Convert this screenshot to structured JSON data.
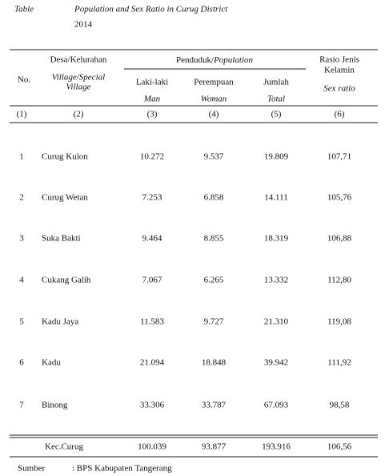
{
  "title": {
    "label": "Table",
    "text": "Population and Sex Ratio in Curug  District",
    "year": "2014"
  },
  "table": {
    "headers": {
      "no": "No.",
      "village": "Desa/Kelurahan",
      "village_en_1": "Village/Special",
      "village_en_2": "Village",
      "population": "Penduduk/",
      "population_en": "Population",
      "male": "Laki-laki",
      "male_en": "Man",
      "female": "Perempuan",
      "female_en": "Woman",
      "total": "Jumlah",
      "total_en": "Total",
      "ratio_1": "Rasio Jenis",
      "ratio_2": "Kelamin",
      "ratio_en": "Sex ratio"
    },
    "column_numbers": [
      "(1)",
      "(2)",
      "(3)",
      "(4)",
      "(5)",
      "(6)"
    ],
    "rows": [
      [
        "1",
        "Curug Kulon",
        "10.272",
        "9.537",
        "19.809",
        "107,71"
      ],
      [
        "2",
        "Curug Wetan",
        "7.253",
        "6.858",
        "14.111",
        "105,76"
      ],
      [
        "3",
        "Suka Bakti",
        "9.464",
        "8.855",
        "18.319",
        "106,88"
      ],
      [
        "4",
        "Cukang Galih",
        "7.067",
        "6.265",
        "13.332",
        "112,80"
      ],
      [
        "5",
        "Kadu Jaya",
        "11.583",
        "9.727",
        "21.310",
        "119,08"
      ],
      [
        "6",
        "Kadu",
        "21.094",
        "18.848",
        "39.942",
        "111,92"
      ],
      [
        "7",
        "Binong",
        "33.306",
        "33.787",
        "67.093",
        "98,58"
      ]
    ],
    "total": [
      "Kec.Curug",
      "100.039",
      "93.877",
      "193.916",
      "106,56"
    ]
  },
  "source": {
    "label": "Sumber",
    "text": ": BPS Kabupaten Tangerang"
  }
}
